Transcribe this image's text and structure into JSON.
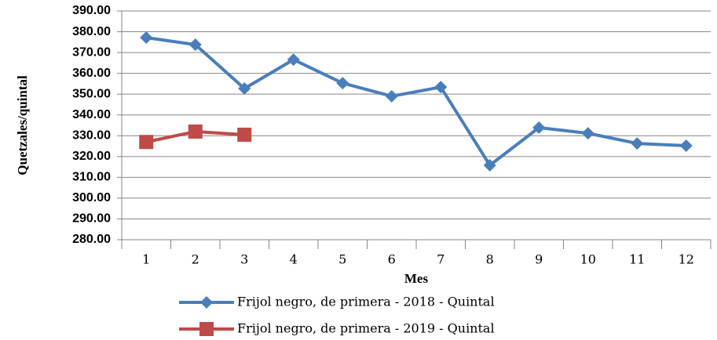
{
  "chart_data": {
    "type": "line",
    "y_label": "Quetzales/quintal",
    "x_label": "Mes",
    "categories": [
      "1",
      "2",
      "3",
      "4",
      "5",
      "6",
      "7",
      "8",
      "9",
      "10",
      "11",
      "12"
    ],
    "series": [
      {
        "name": "Frijol negro, de primera - 2018 - Quintal",
        "color": "#4a7ebb",
        "marker": "diamond",
        "values": [
          377.2,
          373.8,
          352.7,
          366.6,
          355.3,
          349,
          353.4,
          315.8,
          333.9,
          331.2,
          326.3,
          325.2
        ]
      },
      {
        "name": "Frijol negro, de primera - 2019 - Quintal",
        "color": "#be4b48",
        "marker": "square",
        "values": [
          327,
          332,
          330.5,
          null,
          null,
          null,
          null,
          null,
          null,
          null,
          null,
          null
        ]
      }
    ],
    "ylim": [
      280,
      390
    ],
    "yticks": [
      {
        "value": 280,
        "label": "280.00"
      },
      {
        "value": 290,
        "label": "290.00"
      },
      {
        "value": 300,
        "label": "300.00"
      },
      {
        "value": 310,
        "label": "310.00"
      },
      {
        "value": 320,
        "label": "320.00"
      },
      {
        "value": 330,
        "label": "330.00"
      },
      {
        "value": 340,
        "label": "340.00"
      },
      {
        "value": 350,
        "label": "350.00"
      },
      {
        "value": 360,
        "label": "360.00"
      },
      {
        "value": 370,
        "label": "370.00"
      },
      {
        "value": 380,
        "label": "380.00"
      },
      {
        "value": 390,
        "label": "390.00"
      }
    ],
    "grid": true,
    "legend": "bottom"
  }
}
